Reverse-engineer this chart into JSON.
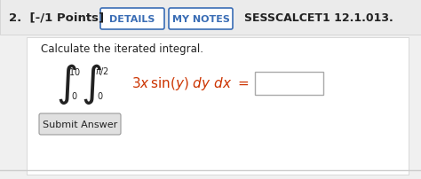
{
  "bg_color": "#f0f0f0",
  "content_bg": "#ffffff",
  "header_bg": "#ebebeb",
  "header_text": "2.  [-/1 Points]",
  "btn1_text": "DETAILS",
  "btn2_text": "MY NOTES",
  "ref_text": "SESSCALCET1 12.1.013.",
  "instruction": "Calculate the iterated integral.",
  "btn_submit": "Submit Answer",
  "integral_color": "#cc3300",
  "text_color": "#222222",
  "btn_border_color": "#3a6db5",
  "btn_text_color": "#3a6db5"
}
